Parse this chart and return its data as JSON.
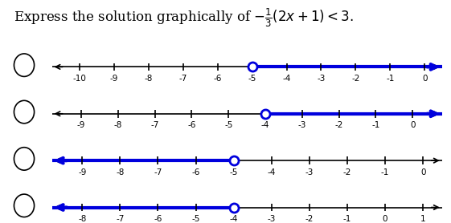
{
  "title_plain": "Express the solution graphically of ",
  "title_math": "$-\\frac{1}{3}(2x + 1) < 3.$",
  "title_fontsize": 12,
  "number_lines": [
    {
      "xmin": -10.8,
      "xmax": 0.5,
      "ticks": [
        -10,
        -9,
        -8,
        -7,
        -6,
        -5,
        -4,
        -3,
        -2,
        -1,
        0
      ],
      "open_circle": -5,
      "arrow_direction": "right"
    },
    {
      "xmin": -9.8,
      "xmax": 0.8,
      "ticks": [
        -9,
        -8,
        -7,
        -6,
        -5,
        -4,
        -3,
        -2,
        -1,
        0
      ],
      "open_circle": -4,
      "arrow_direction": "right"
    },
    {
      "xmin": -9.8,
      "xmax": 0.5,
      "ticks": [
        -9,
        -8,
        -7,
        -6,
        -5,
        -4,
        -3,
        -2,
        -1,
        0
      ],
      "open_circle": -5,
      "arrow_direction": "left"
    },
    {
      "xmin": -8.8,
      "xmax": 1.5,
      "ticks": [
        -8,
        -7,
        -6,
        -5,
        -4,
        -3,
        -2,
        -1,
        0,
        1
      ],
      "open_circle": -4,
      "arrow_direction": "left"
    }
  ],
  "line_color": "#0000dd",
  "axis_color": "#000000",
  "circle_color": "#0000dd",
  "label_fontsize": 7.5
}
